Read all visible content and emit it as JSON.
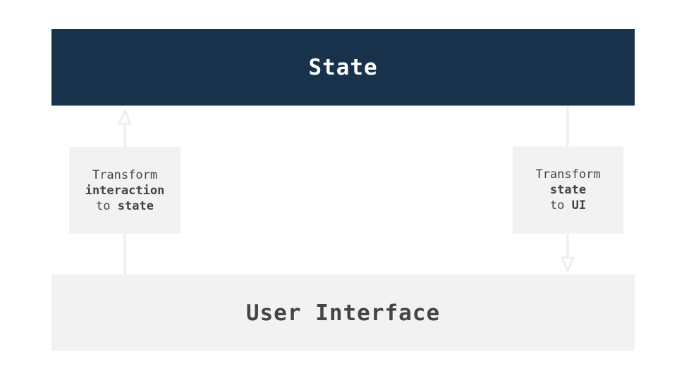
{
  "state": {
    "title": "State"
  },
  "user_interface": {
    "title": "User Interface"
  },
  "left_transform": {
    "line1": "Transform",
    "line2": "interaction",
    "line3_prefix": "to",
    "line3_bold": "state"
  },
  "right_transform": {
    "line1": "Transform",
    "line2": "state",
    "line3_prefix": "to",
    "line3_bold": "UI"
  },
  "colors": {
    "state_fill": "#17324a",
    "box_fill": "#f2f2f2",
    "arrow": "#eeeeee",
    "text_dark": "#444444",
    "text_light": "#ffffff"
  }
}
